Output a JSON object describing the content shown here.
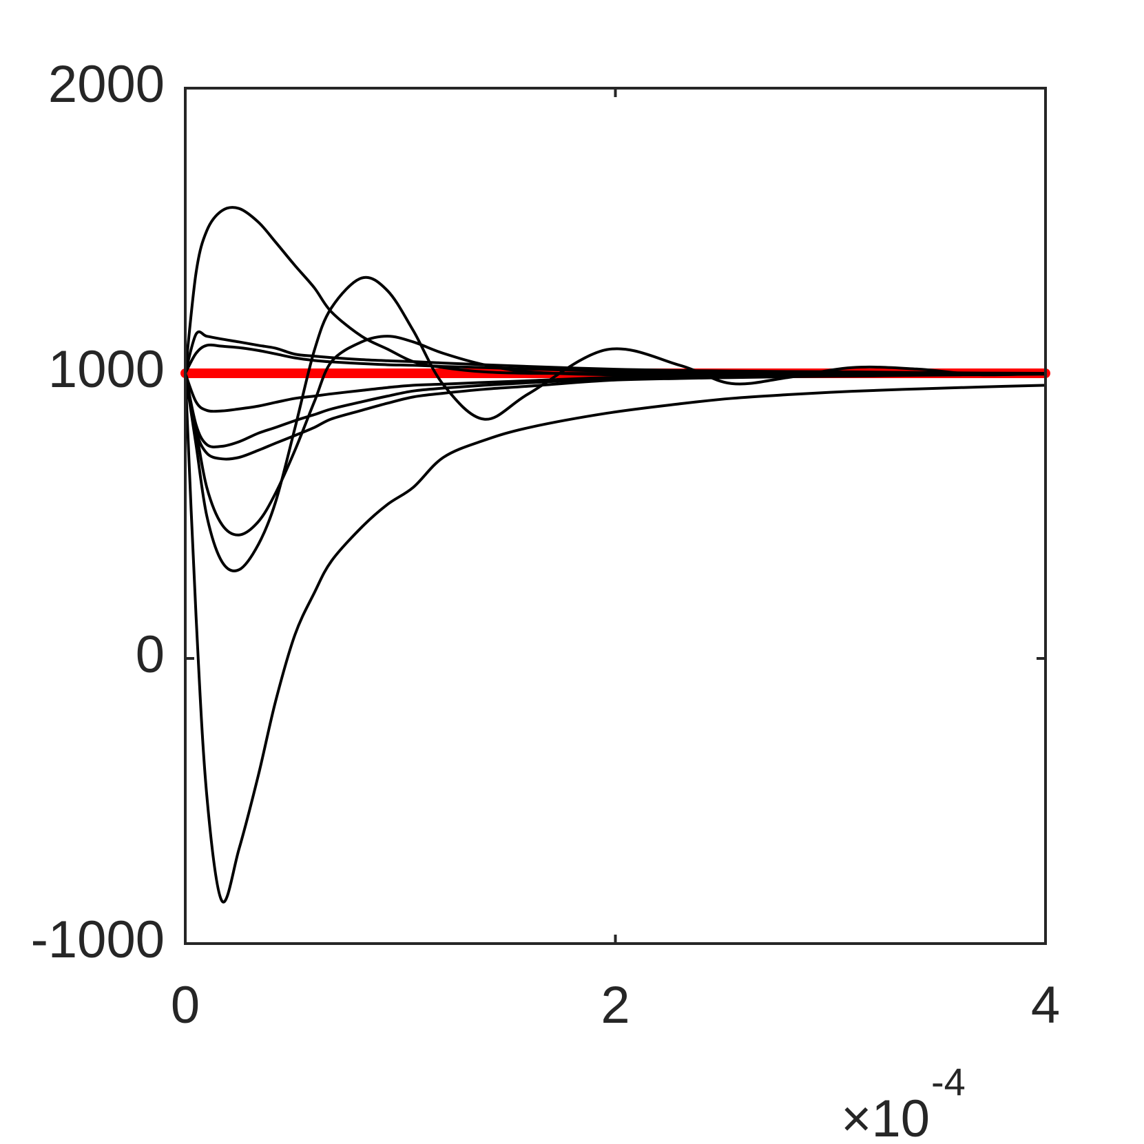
{
  "chart_data": {
    "type": "line",
    "x": [
      0,
      0.05,
      0.1,
      0.17,
      0.25,
      0.34,
      0.42,
      0.51,
      0.6,
      0.68,
      0.82,
      0.94,
      1.06,
      1.2,
      1.39,
      1.6,
      1.96,
      2.3,
      2.54,
      2.8,
      3.1,
      3.4,
      3.7,
      4
    ],
    "xlim": [
      0,
      4
    ],
    "xticks": [
      0,
      2,
      4
    ],
    "x_multiplier": {
      "base": "×10",
      "exponent": "-4"
    },
    "ylim": [
      -1000,
      2000
    ],
    "yticks": [
      -1000,
      0,
      1000,
      2000
    ],
    "series": [
      {
        "color": "#ff0000",
        "width": 14,
        "values": [
          1000,
          1000,
          1000,
          1000,
          1000,
          1000,
          1000,
          1000,
          1000,
          1000,
          1000,
          1000,
          1000,
          1000,
          1000,
          1000,
          1000,
          1000,
          1000,
          1000,
          1000,
          1000,
          1000,
          1000
        ]
      },
      {
        "color": "#000000",
        "width": 4,
        "values": [
          1000,
          150,
          -480,
          -850,
          -668,
          -409,
          -150,
          83,
          230,
          342,
          460,
          540,
          600,
          705,
          765,
          810,
          860,
          893,
          912,
          925,
          937,
          945,
          952,
          958
        ]
      },
      {
        "color": "#000000",
        "width": 4,
        "values": [
          1000,
          1352,
          1500,
          1570,
          1578,
          1530,
          1460,
          1378,
          1300,
          1215,
          1130,
          1085,
          1041,
          1020,
          1005,
          1000,
          1000,
          1000,
          1000,
          1000,
          1000,
          1000,
          1000,
          1000
        ]
      },
      {
        "color": "#000000",
        "width": 4,
        "values": [
          1000,
          750,
          500,
          340,
          311,
          400,
          549,
          808,
          1080,
          1230,
          1334,
          1290,
          1150,
          960,
          839,
          930,
          1083,
          1028,
          964,
          985,
          1020,
          1015,
          995,
          1000
        ]
      },
      {
        "color": "#000000",
        "width": 4,
        "values": [
          1000,
          800,
          600,
          470,
          433,
          480,
          580,
          730,
          900,
          1041,
          1110,
          1130,
          1110,
          1070,
          1030,
          1005,
          995,
          998,
          1000,
          1000,
          1000,
          1000,
          1000,
          1000
        ]
      },
      {
        "color": "#000000",
        "width": 4,
        "values": [
          1000,
          1137,
          1130,
          1120,
          1110,
          1098,
          1088,
          1067,
          1060,
          1055,
          1048,
          1044,
          1041,
          1036,
          1030,
          1024,
          1015,
          1010,
          1008,
          1006,
          1005,
          1003,
          1001,
          1000
        ]
      },
      {
        "color": "#000000",
        "width": 4,
        "values": [
          1000,
          1070,
          1098,
          1095,
          1090,
          1080,
          1068,
          1054,
          1045,
          1040,
          1034,
          1030,
          1028,
          1024,
          1020,
          1015,
          1008,
          1005,
          1003,
          1002,
          1001,
          1000,
          1000,
          1000
        ]
      },
      {
        "color": "#000000",
        "width": 4,
        "values": [
          1000,
          900,
          870,
          868,
          875,
          885,
          898,
          912,
          920,
          928,
          940,
          950,
          958,
          962,
          968,
          974,
          985,
          990,
          992,
          994,
          995,
          996,
          997,
          998
        ]
      },
      {
        "color": "#000000",
        "width": 4,
        "values": [
          1000,
          820,
          750,
          744,
          760,
          790,
          810,
          834,
          855,
          875,
          900,
          920,
          938,
          948,
          958,
          967,
          980,
          986,
          989,
          991,
          993,
          995,
          996,
          998
        ]
      },
      {
        "color": "#000000",
        "width": 4,
        "values": [
          1000,
          800,
          720,
          700,
          705,
          730,
          755,
          782,
          810,
          840,
          870,
          895,
          917,
          930,
          944,
          955,
          975,
          982,
          985,
          988,
          990,
          993,
          995,
          997
        ]
      }
    ]
  }
}
